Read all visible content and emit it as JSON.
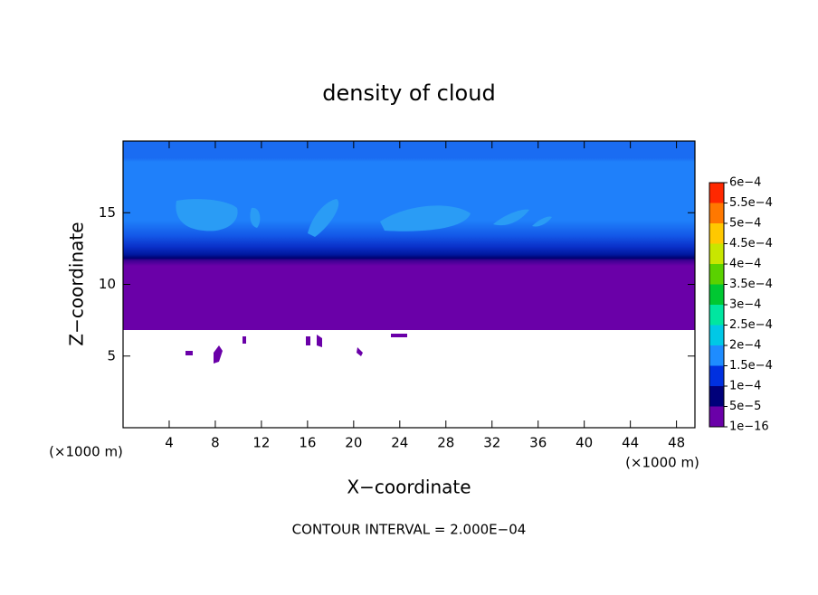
{
  "chart_data": {
    "type": "contour",
    "title": "density of cloud",
    "xlabel": "X−coordinate",
    "ylabel": "Z−coordinate",
    "xunit": "(×1000 m)",
    "yunit": "(×1000 m)",
    "note": "CONTOUR INTERVAL = 2.000E−04",
    "xlim": [
      0,
      49.6
    ],
    "ylim": [
      0,
      20
    ],
    "xticks": [
      4,
      8,
      12,
      16,
      20,
      24,
      28,
      32,
      36,
      40,
      44,
      48
    ],
    "yticks": [
      5,
      10,
      15
    ],
    "colorbar": {
      "levels": [
        {
          "value": 1e-16,
          "label": "1e−16"
        },
        {
          "value": 5e-05,
          "label": "5e−5"
        },
        {
          "value": 0.0001,
          "label": "1e−4"
        },
        {
          "value": 0.00015,
          "label": "1.5e−4"
        },
        {
          "value": 0.0002,
          "label": "2e−4"
        },
        {
          "value": 0.00025,
          "label": "2.5e−4"
        },
        {
          "value": 0.0003,
          "label": "3e−4"
        },
        {
          "value": 0.00035,
          "label": "3.5e−4"
        },
        {
          "value": 0.0004,
          "label": "4e−4"
        },
        {
          "value": 0.00045,
          "label": "4.5e−4"
        },
        {
          "value": 0.0005,
          "label": "5e−4"
        },
        {
          "value": 0.00055,
          "label": "5.5e−4"
        },
        {
          "value": 0.0006,
          "label": "6e−4"
        }
      ],
      "colors": [
        "#6a00a8",
        "#00007a",
        "#0030e0",
        "#1e8cff",
        "#00c8e6",
        "#00e6a0",
        "#00c832",
        "#5ad200",
        "#c8e600",
        "#ffc800",
        "#ff7800",
        "#ff2800",
        "#ff7a8a"
      ]
    }
  }
}
